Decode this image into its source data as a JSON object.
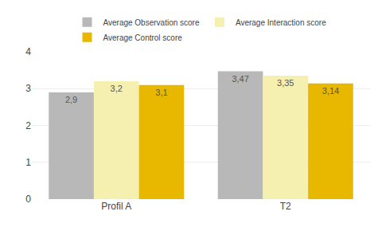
{
  "chart_data": {
    "type": "bar",
    "categories": [
      "Profil A",
      "T2"
    ],
    "series": [
      {
        "name": "Average Observation score",
        "color": "#b8b8b8",
        "values": [
          2.9,
          3.47
        ],
        "value_labels": [
          "2,9",
          "3,47"
        ]
      },
      {
        "name": "Average Interaction score",
        "color": "#f5f0b0",
        "values": [
          3.2,
          3.35
        ],
        "value_labels": [
          "3,2",
          "3,35"
        ]
      },
      {
        "name": "Average Control score",
        "color": "#e8b800",
        "values": [
          3.1,
          3.14
        ],
        "value_labels": [
          "3,1",
          "3,14"
        ]
      }
    ],
    "ylim": [
      0,
      4
    ],
    "yticks": [
      0,
      1,
      2,
      3,
      4
    ],
    "grid": true,
    "data_labels": true,
    "legend": "top"
  }
}
